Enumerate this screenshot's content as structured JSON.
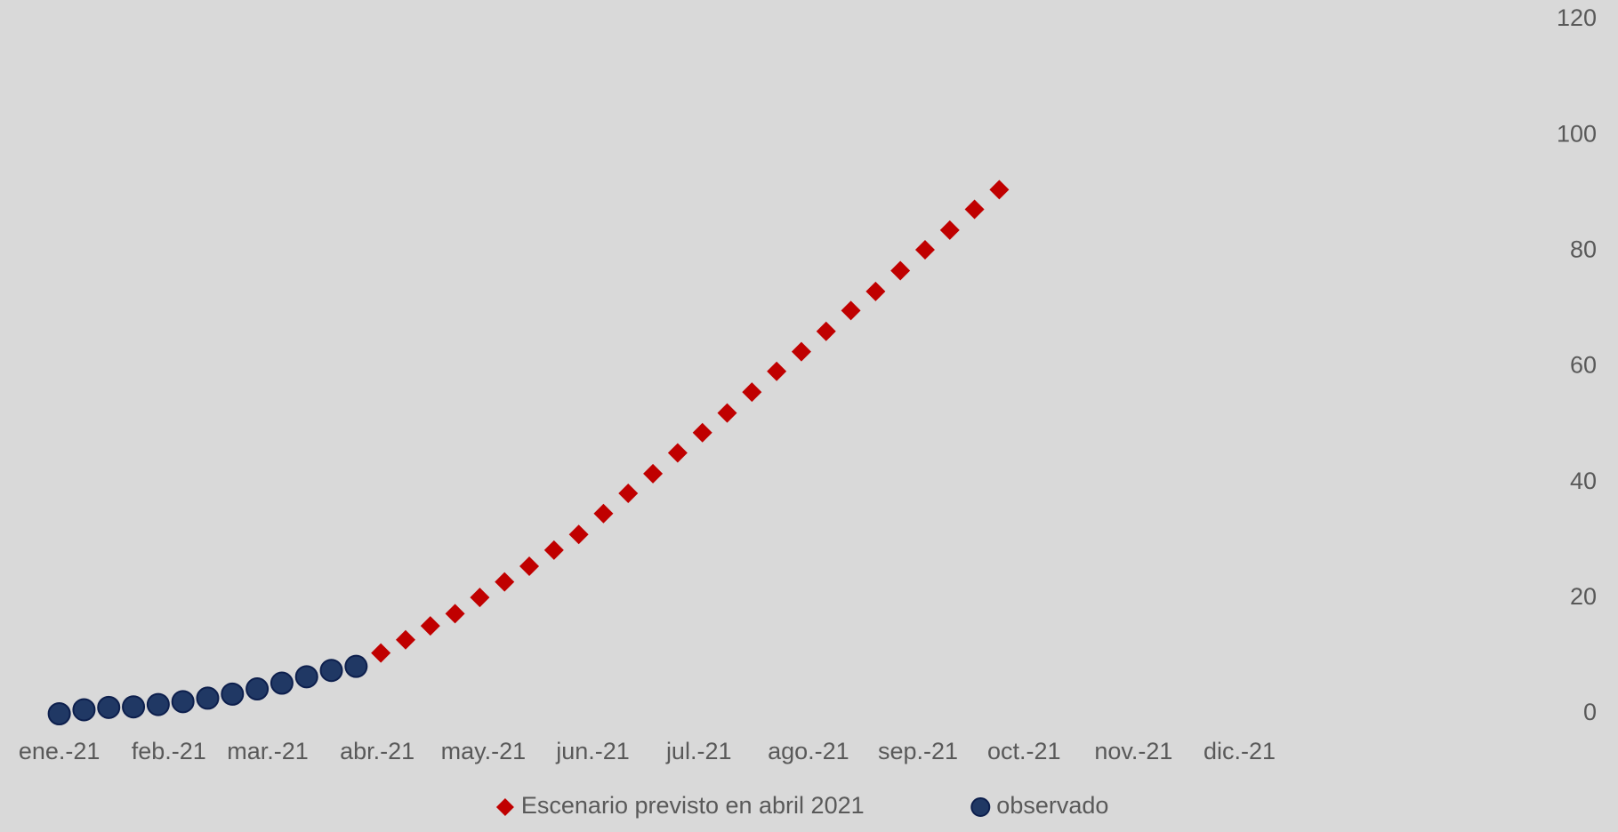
{
  "chart_data": {
    "type": "scatter",
    "y_axis_side": "right",
    "legend": "bottom",
    "xlim": [
      -14,
      355
    ],
    "ylim": [
      0,
      120
    ],
    "yticks": [
      0,
      20,
      40,
      60,
      80,
      100,
      120
    ],
    "xticks": [
      {
        "value": 0,
        "label": "ene.-21"
      },
      {
        "value": 31,
        "label": "feb.-21"
      },
      {
        "value": 59,
        "label": "mar.-21"
      },
      {
        "value": 90,
        "label": "abr.-21"
      },
      {
        "value": 120,
        "label": "may.-21"
      },
      {
        "value": 151,
        "label": "jun.-21"
      },
      {
        "value": 181,
        "label": "jul.-21"
      },
      {
        "value": 212,
        "label": "ago.-21"
      },
      {
        "value": 243,
        "label": "sep.-21"
      },
      {
        "value": 273,
        "label": "oct.-21"
      },
      {
        "value": 304,
        "label": "nov.-21"
      },
      {
        "value": 334,
        "label": "dic.-21"
      }
    ],
    "series": [
      {
        "name": "Escenario previsto en abril 2021",
        "color": "#c00000",
        "marker": "diamond",
        "x": [
          91,
          98,
          105,
          112,
          119,
          126,
          133,
          140,
          147,
          154,
          161,
          168,
          175,
          182,
          189,
          196,
          203,
          210,
          217,
          224,
          231,
          238,
          245,
          252,
          259,
          266
        ],
        "values": [
          10.5,
          12.8,
          15.2,
          17.3,
          20.1,
          22.8,
          25.5,
          28.3,
          31.0,
          34.6,
          38.1,
          41.5,
          45.1,
          48.6,
          52.0,
          55.6,
          59.2,
          62.6,
          66.1,
          69.7,
          73.0,
          76.6,
          80.2,
          83.6,
          87.2,
          90.6
        ]
      },
      {
        "name": "observado",
        "color": "#203864",
        "marker": "circle",
        "x": [
          0,
          7,
          14,
          21,
          28,
          35,
          42,
          49,
          56,
          63,
          70,
          77,
          84
        ],
        "values": [
          0,
          0.7,
          1.1,
          1.2,
          1.6,
          2.1,
          2.7,
          3.4,
          4.3,
          5.3,
          6.4,
          7.5,
          8.2
        ]
      }
    ]
  }
}
